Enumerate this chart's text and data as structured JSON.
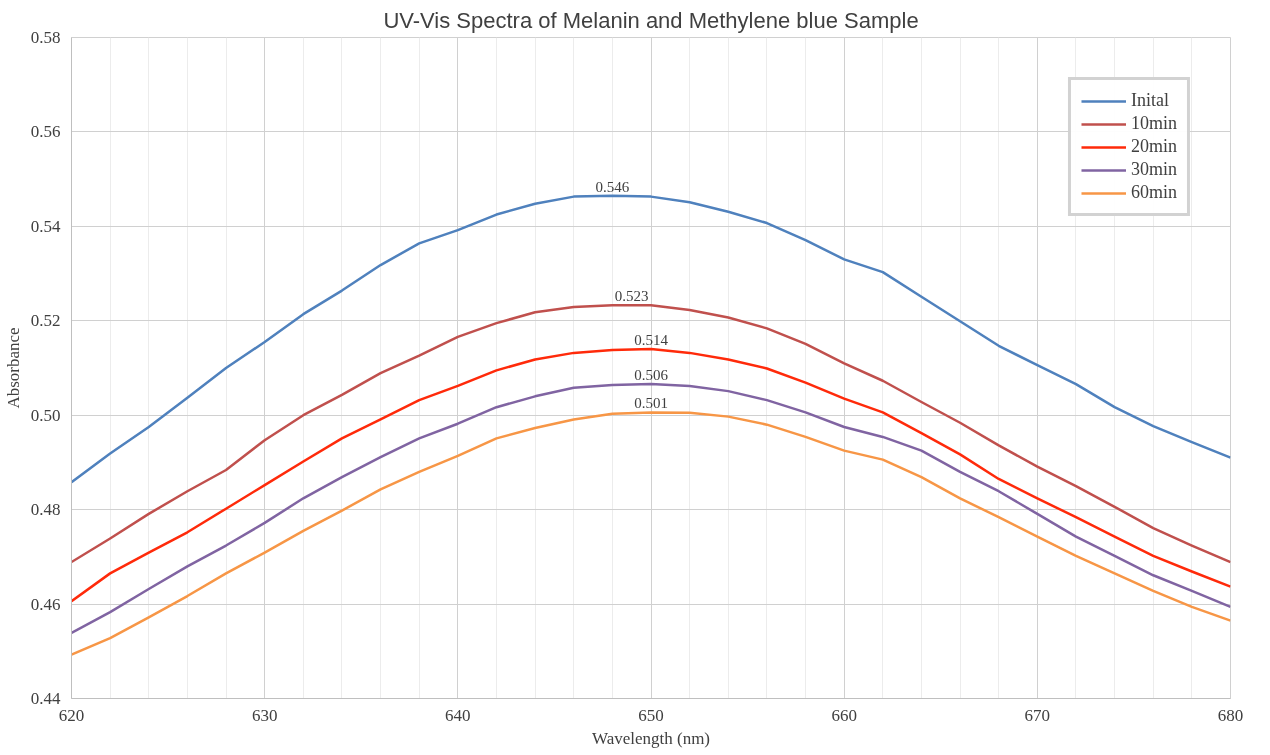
{
  "chart_data": {
    "type": "line",
    "title": "UV-Vis Spectra of Melanin and Methylene blue Sample",
    "xlabel": "Wavelength (nm)",
    "ylabel": "Absorbance",
    "x": [
      620,
      622,
      624,
      626,
      628,
      630,
      632,
      634,
      636,
      638,
      640,
      642,
      644,
      646,
      648,
      650,
      652,
      654,
      656,
      658,
      660,
      662,
      664,
      666,
      668,
      670,
      672,
      674,
      676,
      678,
      680
    ],
    "series": [
      {
        "name": "Inital",
        "color": "#4f81bd",
        "values": [
          0.4858,
          0.4919,
          0.4975,
          0.5037,
          0.51,
          0.5155,
          0.5214,
          0.5264,
          0.5318,
          0.5364,
          0.5392,
          0.5425,
          0.5448,
          0.5463,
          0.5465,
          0.5463,
          0.5451,
          0.5431,
          0.5407,
          0.5371,
          0.533,
          0.5303,
          0.5251,
          0.5199,
          0.5147,
          0.5106,
          0.5066,
          0.5017,
          0.4977,
          0.4943,
          0.491
        ]
      },
      {
        "name": "10min",
        "color": "#c0504d",
        "values": [
          0.4689,
          0.4739,
          0.4791,
          0.4839,
          0.4884,
          0.4947,
          0.5,
          0.5043,
          0.5089,
          0.5126,
          0.5166,
          0.5195,
          0.5218,
          0.5229,
          0.5233,
          0.5233,
          0.5223,
          0.5207,
          0.5184,
          0.5151,
          0.511,
          0.5073,
          0.5028,
          0.4984,
          0.4936,
          0.4891,
          0.485,
          0.4806,
          0.4761,
          0.4724,
          0.4689
        ]
      },
      {
        "name": "20min",
        "color": "#ff2a0a",
        "values": [
          0.4606,
          0.4665,
          0.4709,
          0.4752,
          0.4802,
          0.4852,
          0.4902,
          0.4951,
          0.4991,
          0.5032,
          0.5062,
          0.5095,
          0.5118,
          0.5132,
          0.5138,
          0.514,
          0.5132,
          0.5118,
          0.5099,
          0.5069,
          0.5035,
          0.5006,
          0.4962,
          0.4917,
          0.4865,
          0.4824,
          0.4784,
          0.4743,
          0.4702,
          0.4669,
          0.4637
        ]
      },
      {
        "name": "30min",
        "color": "#8064a2",
        "values": [
          0.4539,
          0.4583,
          0.4632,
          0.468,
          0.4724,
          0.4772,
          0.4824,
          0.4869,
          0.4911,
          0.4951,
          0.4982,
          0.5017,
          0.504,
          0.5058,
          0.5064,
          0.5066,
          0.5062,
          0.5051,
          0.5032,
          0.5006,
          0.4975,
          0.4954,
          0.4925,
          0.488,
          0.4839,
          0.4791,
          0.4743,
          0.4702,
          0.4661,
          0.4628,
          0.4594
        ]
      },
      {
        "name": "60min",
        "color": "#f79646",
        "values": [
          0.4493,
          0.4528,
          0.4572,
          0.4617,
          0.4665,
          0.4709,
          0.4755,
          0.4798,
          0.4843,
          0.488,
          0.4914,
          0.4951,
          0.4973,
          0.4991,
          0.5003,
          0.5006,
          0.5005,
          0.4997,
          0.498,
          0.4954,
          0.4925,
          0.4906,
          0.4869,
          0.4824,
          0.4784,
          0.4743,
          0.4702,
          0.4665,
          0.4628,
          0.4594,
          0.4565
        ]
      }
    ],
    "annotations": [
      {
        "text": "0.546",
        "x": 648,
        "y": 0.5465
      },
      {
        "text": "0.523",
        "x": 649,
        "y": 0.5233
      },
      {
        "text": "0.514",
        "x": 650,
        "y": 0.514
      },
      {
        "text": "0.506",
        "x": 650,
        "y": 0.5066
      },
      {
        "text": "0.501",
        "x": 650,
        "y": 0.5006
      }
    ],
    "xlim": [
      620,
      680
    ],
    "xticks": [
      620,
      630,
      640,
      650,
      660,
      670,
      680
    ],
    "ylim": [
      0.44,
      0.58
    ],
    "yticks": [
      {
        "value": 0.44,
        "label": "0.44"
      },
      {
        "value": 0.46,
        "label": "0.46"
      },
      {
        "value": 0.48,
        "label": "0.48"
      },
      {
        "value": 0.5,
        "label": "0.50"
      },
      {
        "value": 0.52,
        "label": "0.52"
      },
      {
        "value": 0.54,
        "label": "0.54"
      },
      {
        "value": 0.56,
        "label": "0.56"
      },
      {
        "value": 0.58,
        "label": "0.58"
      }
    ],
    "grid": true,
    "legend": "top right",
    "marker": "none",
    "line_style": "solid"
  }
}
